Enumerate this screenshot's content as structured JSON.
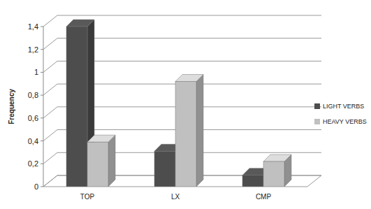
{
  "chart_data": {
    "type": "bar",
    "y_label": "Frequency",
    "categories": [
      "TOP",
      "LX",
      "CMP"
    ],
    "series": [
      {
        "name": "LIGHT VERBS",
        "color": "#4d4d4d",
        "values": [
          1.4,
          0.31,
          0.1
        ]
      },
      {
        "name": "HEAVY VERBS",
        "color": "#c0c0c0",
        "values": [
          0.39,
          0.92,
          0.22
        ]
      }
    ],
    "ylim": [
      0,
      1.4
    ],
    "yticks": [
      0,
      {
        "value": 0.2,
        "label": "0,2"
      },
      {
        "value": 0.4,
        "label": "0,4"
      },
      {
        "value": 0.6,
        "label": "0,6"
      },
      {
        "value": 0.8,
        "label": "0,8"
      },
      1,
      {
        "value": 1.2,
        "label": "1,2"
      },
      {
        "value": 1.4,
        "label": "1,4"
      }
    ],
    "grid": true,
    "legend": "right"
  }
}
